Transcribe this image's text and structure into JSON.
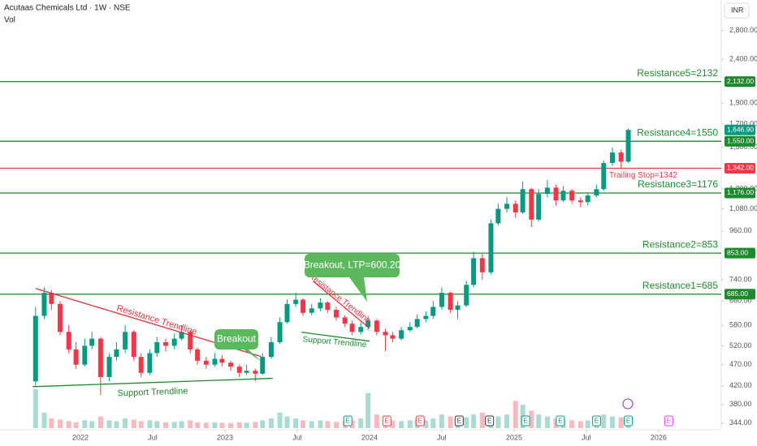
{
  "chart_data": {
    "type": "candlestick",
    "title": "Acutaas Chemicals Ltd · 1W · NSE",
    "volume_label": "Vol",
    "currency": "INR",
    "log_scale": true,
    "grid": false,
    "up_color": "#089981",
    "down_color": "#f23645",
    "xlim": [
      2021.444,
      2026.433
    ],
    "xticks": [
      {
        "value": 2022,
        "label": "2022"
      },
      {
        "value": 2022.5,
        "label": "Jul"
      },
      {
        "value": 2023,
        "label": "2023"
      },
      {
        "value": 2023.5,
        "label": "Jul"
      },
      {
        "value": 2024,
        "label": "2024"
      },
      {
        "value": 2024.5,
        "label": "Jul"
      },
      {
        "value": 2025,
        "label": "2025"
      },
      {
        "value": 2025.5,
        "label": "Jul"
      },
      {
        "value": 2026,
        "label": "2026"
      }
    ],
    "ylim": [
      332,
      3296
    ],
    "yticks": [
      {
        "value": 2800,
        "label": "2,800.00"
      },
      {
        "value": 2400,
        "label": "2,400.00"
      },
      {
        "value": 1900,
        "label": "1,900.00"
      },
      {
        "value": 1700,
        "label": "1,700.00"
      },
      {
        "value": 1500,
        "label": "1,500.00"
      },
      {
        "value": 1200,
        "label": "1,200.00"
      },
      {
        "value": 1080,
        "label": "1,080.00"
      },
      {
        "value": 960,
        "label": "960.00"
      },
      {
        "value": 740,
        "label": "740.00"
      },
      {
        "value": 660,
        "label": "660.00"
      },
      {
        "value": 580,
        "label": "580.00"
      },
      {
        "value": 520,
        "label": "520.00"
      },
      {
        "value": 470,
        "label": "470.00"
      },
      {
        "value": 420,
        "label": "420.00"
      },
      {
        "value": 380,
        "label": "380.00"
      },
      {
        "value": 344,
        "label": "344.00"
      }
    ],
    "x": [
      2021.69,
      2021.75,
      2021.8,
      2021.86,
      2021.92,
      2021.97,
      2022.03,
      2022.08,
      2022.14,
      2022.2,
      2022.25,
      2022.31,
      2022.37,
      2022.42,
      2022.48,
      2022.53,
      2022.59,
      2022.65,
      2022.7,
      2022.76,
      2022.81,
      2022.87,
      2022.93,
      2022.98,
      2023.04,
      2023.1,
      2023.15,
      2023.21,
      2023.26,
      2023.32,
      2023.38,
      2023.43,
      2023.49,
      2023.54,
      2023.6,
      2023.66,
      2023.71,
      2023.77,
      2023.83,
      2023.88,
      2023.94,
      2023.99,
      2024.05,
      2024.11,
      2024.16,
      2024.22,
      2024.28,
      2024.33,
      2024.39,
      2024.44,
      2024.5,
      2024.56,
      2024.61,
      2024.67,
      2024.72,
      2024.78,
      2024.84,
      2024.89,
      2024.95,
      2025.01,
      2025.06,
      2025.12,
      2025.17,
      2025.23,
      2025.29,
      2025.34,
      2025.4,
      2025.46,
      2025.51,
      2025.57,
      2025.62,
      2025.68,
      2025.74,
      2025.79
    ],
    "ohlc": [
      [
        430,
        640,
        420,
        610
      ],
      [
        610,
        710,
        600,
        690
      ],
      [
        690,
        700,
        630,
        650
      ],
      [
        650,
        660,
        550,
        560
      ],
      [
        560,
        580,
        500,
        510
      ],
      [
        510,
        530,
        460,
        470
      ],
      [
        470,
        540,
        465,
        520
      ],
      [
        520,
        560,
        510,
        540
      ],
      [
        540,
        545,
        400,
        440
      ],
      [
        440,
        500,
        430,
        490
      ],
      [
        490,
        530,
        480,
        510
      ],
      [
        510,
        580,
        500,
        560
      ],
      [
        560,
        565,
        480,
        490
      ],
      [
        490,
        500,
        440,
        450
      ],
      [
        450,
        510,
        445,
        500
      ],
      [
        500,
        545,
        490,
        530
      ],
      [
        530,
        540,
        505,
        520
      ],
      [
        520,
        555,
        510,
        540
      ],
      [
        540,
        580,
        535,
        560
      ],
      [
        560,
        565,
        500,
        510
      ],
      [
        510,
        515,
        470,
        480
      ],
      [
        480,
        490,
        460,
        470
      ],
      [
        470,
        500,
        465,
        485
      ],
      [
        485,
        495,
        465,
        475
      ],
      [
        475,
        480,
        455,
        465
      ],
      [
        465,
        470,
        440,
        450
      ],
      [
        450,
        470,
        445,
        455
      ],
      [
        455,
        460,
        430,
        448
      ],
      [
        448,
        500,
        445,
        490
      ],
      [
        490,
        545,
        485,
        530
      ],
      [
        530,
        605,
        525,
        590
      ],
      [
        590,
        665,
        585,
        650
      ],
      [
        650,
        690,
        640,
        665
      ],
      [
        665,
        670,
        610,
        620
      ],
      [
        620,
        650,
        612,
        635
      ],
      [
        635,
        670,
        625,
        655
      ],
      [
        655,
        660,
        620,
        630
      ],
      [
        630,
        640,
        595,
        605
      ],
      [
        605,
        612,
        575,
        585
      ],
      [
        585,
        595,
        550,
        560
      ],
      [
        560,
        590,
        552,
        575
      ],
      [
        575,
        610,
        565,
        595
      ],
      [
        595,
        600,
        550,
        560
      ],
      [
        560,
        570,
        505,
        550
      ],
      [
        550,
        560,
        530,
        540
      ],
      [
        540,
        575,
        535,
        565
      ],
      [
        565,
        590,
        560,
        575
      ],
      [
        575,
        615,
        570,
        600
      ],
      [
        600,
        625,
        590,
        610
      ],
      [
        610,
        660,
        600,
        640
      ],
      [
        640,
        710,
        630,
        690
      ],
      [
        690,
        695,
        620,
        630
      ],
      [
        630,
        660,
        600,
        645
      ],
      [
        645,
        735,
        640,
        720
      ],
      [
        720,
        860,
        710,
        830
      ],
      [
        830,
        850,
        740,
        770
      ],
      [
        770,
        1020,
        760,
        1000
      ],
      [
        1000,
        1110,
        990,
        1080
      ],
      [
        1080,
        1150,
        1060,
        1110
      ],
      [
        1110,
        1130,
        1030,
        1060
      ],
      [
        1060,
        1250,
        1050,
        1200
      ],
      [
        1200,
        1210,
        980,
        1020
      ],
      [
        1020,
        1200,
        1010,
        1170
      ],
      [
        1170,
        1260,
        1150,
        1210
      ],
      [
        1210,
        1230,
        1100,
        1130
      ],
      [
        1130,
        1220,
        1120,
        1190
      ],
      [
        1190,
        1200,
        1110,
        1130
      ],
      [
        1130,
        1150,
        1090,
        1120
      ],
      [
        1120,
        1180,
        1100,
        1160
      ],
      [
        1160,
        1230,
        1150,
        1200
      ],
      [
        1200,
        1400,
        1190,
        1380
      ],
      [
        1380,
        1500,
        1360,
        1460
      ],
      [
        1460,
        1480,
        1340,
        1390
      ],
      [
        1390,
        1660,
        1380,
        1646.9
      ]
    ],
    "volume": [
      100,
      40,
      25,
      22,
      18,
      15,
      20,
      18,
      30,
      20,
      18,
      25,
      22,
      18,
      20,
      18,
      15,
      16,
      18,
      20,
      15,
      14,
      15,
      14,
      13,
      15,
      14,
      16,
      20,
      25,
      40,
      30,
      25,
      20,
      18,
      20,
      18,
      16,
      18,
      20,
      25,
      90,
      35,
      30,
      20,
      18,
      20,
      22,
      20,
      25,
      35,
      30,
      25,
      28,
      35,
      40,
      30,
      30,
      35,
      70,
      60,
      45,
      35,
      30,
      25,
      22,
      20,
      18,
      20,
      25,
      35,
      30,
      28,
      30
    ],
    "levels": [
      {
        "label": "Resistance5=2132",
        "value": 2132,
        "axis_label": "2,132.00",
        "color": "#1e8a2e"
      },
      {
        "label": "Resistance4=1550",
        "value": 1550,
        "axis_label": "1,550.00",
        "color": "#1e8a2e"
      },
      {
        "label": "Trailing Stop=1342",
        "value": 1342,
        "axis_label": "1,342.00",
        "color": "#f23645"
      },
      {
        "label": "Resistance3=1176",
        "value": 1176,
        "axis_label": "1,176.00",
        "color": "#1e8a2e"
      },
      {
        "label": "Resistance2=853",
        "value": 853,
        "axis_label": "853.00",
        "color": "#1e8a2e"
      },
      {
        "label": "Resistance1=685",
        "value": 685,
        "axis_label": "685.00",
        "color": "#1e8a2e"
      }
    ],
    "last_price": {
      "value": 1646.9,
      "label": "1,646.90",
      "color": "#089981"
    },
    "trendlines": [
      {
        "name": "Resistance Trendline",
        "color": "#e0303e",
        "x": [
          2021.69,
          2023.25
        ],
        "y": [
          706,
          491
        ]
      },
      {
        "name": "Support Trendline",
        "color": "#1e8a2e",
        "x": [
          2021.67,
          2023.33
        ],
        "y": [
          418,
          437
        ]
      },
      {
        "name": "Resistance Trendline",
        "color": "#e0303e",
        "x": [
          2023.61,
          2024.0
        ],
        "y": [
          734,
          571
        ]
      },
      {
        "name": "Support Trendline",
        "color": "#1e8a2e",
        "x": [
          2023.53,
          2024.0
        ],
        "y": [
          559,
          533
        ]
      }
    ],
    "annotations": [
      {
        "text": "Breakout"
      },
      {
        "text": "Breakout, LTP=600.20"
      }
    ],
    "events": [
      {
        "x": 2023.85,
        "label": "E",
        "color": "#089981"
      },
      {
        "x": 2024.12,
        "label": "E",
        "color": "#f23645"
      },
      {
        "x": 2024.35,
        "label": "E",
        "color": "#f23645"
      },
      {
        "x": 2024.62,
        "label": "E",
        "color": "#333333"
      },
      {
        "x": 2024.83,
        "label": "E",
        "color": "#333333"
      },
      {
        "x": 2025.08,
        "label": "E",
        "color": "#089981"
      },
      {
        "x": 2025.32,
        "label": "E",
        "color": "#089981"
      },
      {
        "x": 2025.57,
        "label": "E",
        "color": "#089981"
      },
      {
        "x": 2025.79,
        "label": "E",
        "color": "#089981"
      },
      {
        "x": 2026.07,
        "label": "E",
        "color": "#e040fb"
      }
    ]
  }
}
